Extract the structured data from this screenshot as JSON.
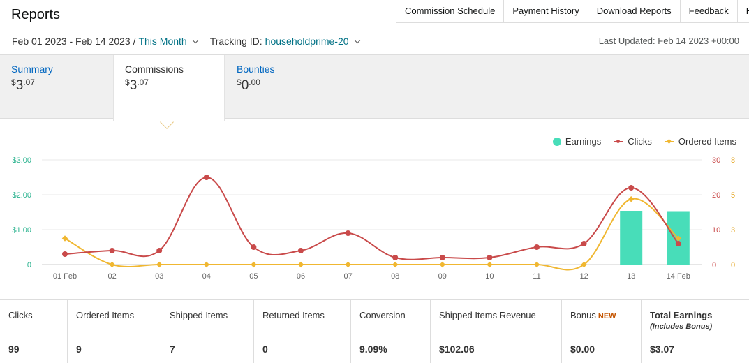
{
  "page": {
    "title": "Reports"
  },
  "topnav": {
    "items": [
      "Commission Schedule",
      "Payment History",
      "Download Reports",
      "Feedback",
      "Help"
    ]
  },
  "filters": {
    "date_range": "Feb 01 2023 - Feb 14 2023 /",
    "period": "This Month",
    "tracking_label": "Tracking ID:",
    "tracking_id": "householdprime-20"
  },
  "last_updated": "Last Updated: Feb 14 2023 +00:00",
  "tabs": [
    {
      "label": "Summary",
      "currency": "$",
      "whole": "3",
      "cents": ".07"
    },
    {
      "label": "Commissions",
      "currency": "$",
      "whole": "3",
      "cents": ".07"
    },
    {
      "label": "Bounties",
      "currency": "$",
      "whole": "0",
      "cents": ".00"
    }
  ],
  "legend": {
    "earnings": "Earnings",
    "clicks": "Clicks",
    "ordered": "Ordered Items"
  },
  "colors": {
    "earnings": "#48ddb9",
    "clicks": "#c94a4a",
    "ordered": "#f0b731",
    "link": "#007185"
  },
  "chart_data": {
    "type": "line",
    "categories": [
      "01 Feb",
      "02",
      "03",
      "04",
      "05",
      "06",
      "07",
      "08",
      "09",
      "10",
      "11",
      "12",
      "13",
      "14 Feb"
    ],
    "series": [
      {
        "name": "Earnings",
        "kind": "bar",
        "axis": "left",
        "values": [
          0,
          0,
          0,
          0,
          0,
          0,
          0,
          0,
          0,
          0,
          0,
          0,
          1.54,
          1.53
        ]
      },
      {
        "name": "Clicks",
        "kind": "line",
        "axis": "right1",
        "values": [
          3,
          4,
          4,
          25,
          5,
          4,
          9,
          2,
          2,
          2,
          5,
          6,
          22,
          6
        ]
      },
      {
        "name": "Ordered Items",
        "kind": "line",
        "axis": "right2",
        "values": [
          2,
          0,
          0,
          0,
          0,
          0,
          0,
          0,
          0,
          0,
          0,
          0,
          5,
          2
        ]
      }
    ],
    "y_left": {
      "ticks": [
        "0",
        "$1.00",
        "$2.00",
        "$3.00"
      ],
      "ylim": [
        0,
        3
      ]
    },
    "y_right1": {
      "ticks": [
        "0",
        "10",
        "20",
        "30"
      ],
      "ylim": [
        0,
        30
      ]
    },
    "y_right2": {
      "ticks": [
        "0",
        "3",
        "5",
        "8"
      ],
      "ylim": [
        0,
        8
      ]
    },
    "grid": true,
    "legend_position": "top-right"
  },
  "stats": [
    {
      "label": "Clicks",
      "value": "99"
    },
    {
      "label": "Ordered Items",
      "value": "9"
    },
    {
      "label": "Shipped Items",
      "value": "7"
    },
    {
      "label": "Returned Items",
      "value": "0"
    },
    {
      "label": "Conversion",
      "value": "9.09%"
    },
    {
      "label": "Shipped Items Revenue",
      "value": "$102.06"
    },
    {
      "label": "Bonus",
      "badge": "NEW",
      "value": "$0.00"
    },
    {
      "label": "Total Earnings",
      "sublabel": "(Includes Bonus)",
      "value": "$3.07"
    }
  ]
}
